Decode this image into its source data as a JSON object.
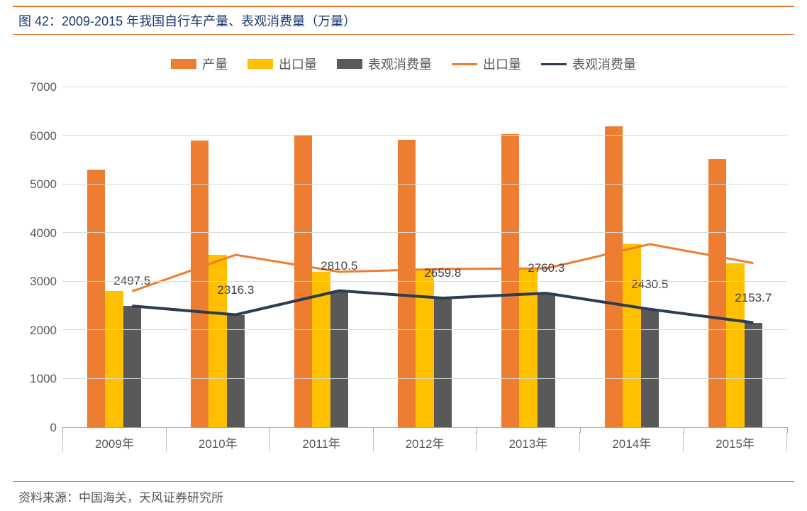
{
  "title": "图 42：2009-2015 年我国自行车产量、表观消费量（万量）",
  "source": "资料来源：中国海关，天风证券研究所",
  "chart": {
    "type": "bar+line",
    "categories": [
      "2009年",
      "2010年",
      "2011年",
      "2012年",
      "2013年",
      "2014年",
      "2015年"
    ],
    "ylim": [
      0,
      7000
    ],
    "ytick_step": 1000,
    "y_ticks": [
      0,
      1000,
      2000,
      3000,
      4000,
      5000,
      6000,
      7000
    ],
    "grid_color": "#d9d9d9",
    "axis_color": "#a6a6a6",
    "background_color": "#ffffff",
    "label_color": "#595959",
    "title_color": "#1a3a6e",
    "rule_color": "#e87424",
    "tick_fontsize": 17,
    "datalabel_fontsize": 17,
    "legend_fontsize": 18,
    "title_fontsize": 18,
    "bars": [
      {
        "name": "产量",
        "color": "#ed7d31",
        "values": [
          5300,
          5900,
          6000,
          5920,
          6030,
          6200,
          5530
        ]
      },
      {
        "name": "出口量",
        "color": "#ffc000",
        "values": [
          2800,
          3550,
          3200,
          3260,
          3270,
          3770,
          3380
        ]
      },
      {
        "name": "表观消费量",
        "color": "#595959",
        "values": [
          2497.5,
          2316.3,
          2810.5,
          2659.8,
          2760.3,
          2430.5,
          2153.7
        ]
      }
    ],
    "lines": [
      {
        "name": "出口量",
        "color": "#ed7d31",
        "width": 3,
        "values": [
          2800,
          3550,
          3200,
          3260,
          3270,
          3770,
          3380
        ]
      },
      {
        "name": "表观消费量",
        "color": "#2e3c4e",
        "width": 4,
        "values": [
          2497.5,
          2316.3,
          2810.5,
          2659.8,
          2760.3,
          2430.5,
          2153.7
        ]
      }
    ],
    "data_labels": {
      "series": "表观消费量",
      "values": [
        "2497.5",
        "2316.3",
        "2810.5",
        "2659.8",
        "2760.3",
        "2430.5",
        "2153.7"
      ]
    },
    "bar_group_width_pct": 52,
    "line_center_on": 2
  },
  "legend": [
    {
      "type": "bar",
      "label": "产量",
      "color": "#ed7d31"
    },
    {
      "type": "bar",
      "label": "出口量",
      "color": "#ffc000"
    },
    {
      "type": "bar",
      "label": "表观消费量",
      "color": "#595959"
    },
    {
      "type": "line",
      "label": "出口量",
      "color": "#ed7d31"
    },
    {
      "type": "line",
      "label": "表观消费量",
      "color": "#2e3c4e"
    }
  ]
}
